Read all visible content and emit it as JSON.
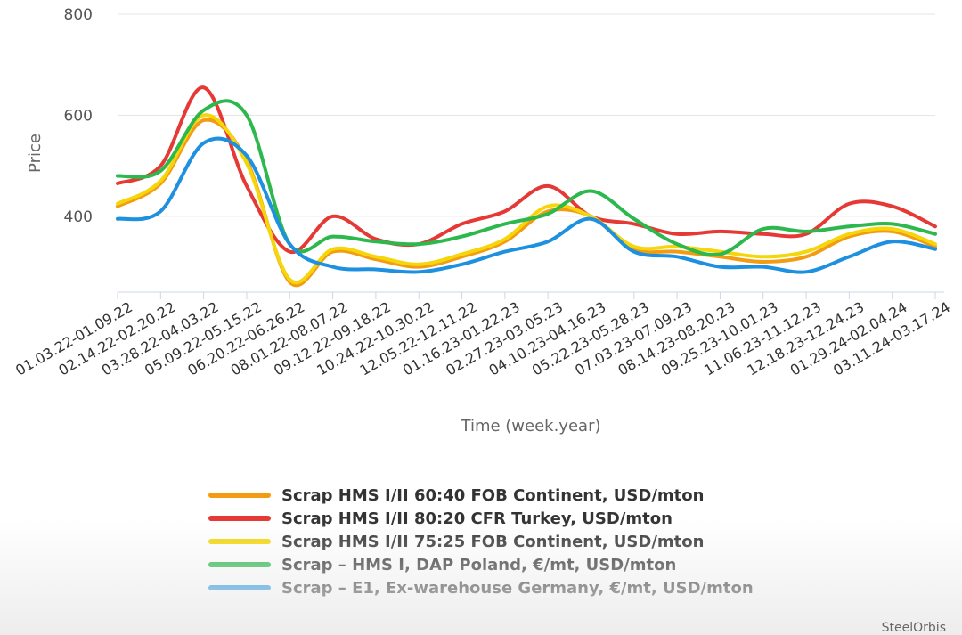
{
  "chart_data": {
    "type": "line",
    "title": "",
    "xlabel": "Time (week.year)",
    "ylabel": "Price",
    "ylim": [
      250,
      800
    ],
    "yticks": [
      400,
      600,
      800
    ],
    "grid": true,
    "legend_position": "bottom",
    "categories": [
      "01.03.22-01.09.22",
      "02.14.22-02.20.22",
      "03.28.22-04.03.22",
      "05.09.22-05.15.22",
      "06.20.22-06.26.22",
      "08.01.22-08.07.22",
      "09.12.22-09.18.22",
      "10.24.22-10.30.22",
      "12.05.22-12.11.22",
      "01.16.23-01.22.23",
      "02.27.23-03.05.23",
      "04.10.23-04.16.23",
      "05.22.23-05.28.23",
      "07.03.23-07.09.23",
      "08.14.23-08.20.23",
      "09.25.23-10.01.23",
      "11.06.23-11.12.23",
      "12.18.23-12.24.23",
      "01.29.24-02.04.24",
      "03.11.24-03.17.24"
    ],
    "series": [
      {
        "name": "Scrap HMS I/II 60:40 FOB Continent, USD/mton",
        "color": "#f39c12",
        "values": [
          420,
          465,
          590,
          510,
          270,
          330,
          315,
          300,
          320,
          350,
          410,
          400,
          335,
          330,
          320,
          310,
          320,
          360,
          370,
          340
        ]
      },
      {
        "name": "Scrap HMS I/II 80:20 CFR Turkey, USD/mton",
        "color": "#e53935",
        "values": [
          465,
          500,
          655,
          460,
          330,
          400,
          355,
          345,
          385,
          410,
          460,
          400,
          385,
          365,
          370,
          365,
          365,
          425,
          420,
          380
        ]
      },
      {
        "name": "Scrap HMS I/II 75:25 FOB Continent, USD/mton",
        "color": "#f5d60a",
        "values": [
          425,
          470,
          600,
          505,
          275,
          335,
          320,
          305,
          325,
          355,
          420,
          400,
          340,
          340,
          330,
          320,
          330,
          365,
          375,
          345
        ]
      },
      {
        "name": "Scrap – HMS I, DAP Poland, €/mt, USD/mton",
        "color": "#2db84d",
        "values": [
          480,
          490,
          610,
          600,
          345,
          360,
          350,
          345,
          360,
          385,
          405,
          450,
          395,
          345,
          325,
          375,
          370,
          380,
          385,
          365
        ]
      },
      {
        "name": "Scrap – E1, Ex-warehouse Germany, €/mt, USD/mton",
        "color": "#1e90e0",
        "values": [
          395,
          410,
          545,
          520,
          345,
          300,
          295,
          290,
          305,
          330,
          350,
          395,
          330,
          320,
          300,
          300,
          290,
          320,
          350,
          335
        ]
      }
    ]
  },
  "watermark": "SteelOrbis"
}
